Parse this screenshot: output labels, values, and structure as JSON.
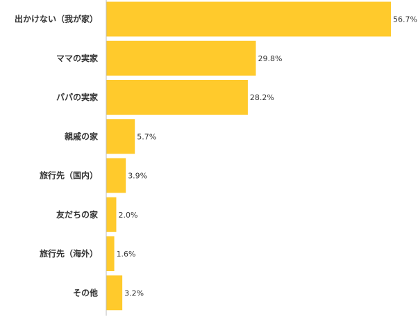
{
  "chart_data": {
    "type": "bar",
    "orientation": "horizontal",
    "categories": [
      "出かけない（我が家）",
      "ママの実家",
      "パパの実家",
      "親戚の家",
      "旅行先（国内）",
      "友だちの家",
      "旅行先（海外）",
      "その他"
    ],
    "values": [
      56.7,
      29.8,
      28.2,
      5.7,
      3.9,
      2.0,
      1.6,
      3.2
    ],
    "value_labels": [
      "56.7%",
      "29.8%",
      "28.2%",
      "5.7%",
      "3.9%",
      "2.0%",
      "1.6%",
      "3.2%"
    ],
    "unit": "%",
    "title": "",
    "xlabel": "",
    "ylabel": "",
    "xlim": [
      0,
      57
    ],
    "grid": false,
    "legend": "none",
    "bar_color": "#FFCA2C",
    "axis_color": "#BBBBBB",
    "text_color": "#333333"
  }
}
